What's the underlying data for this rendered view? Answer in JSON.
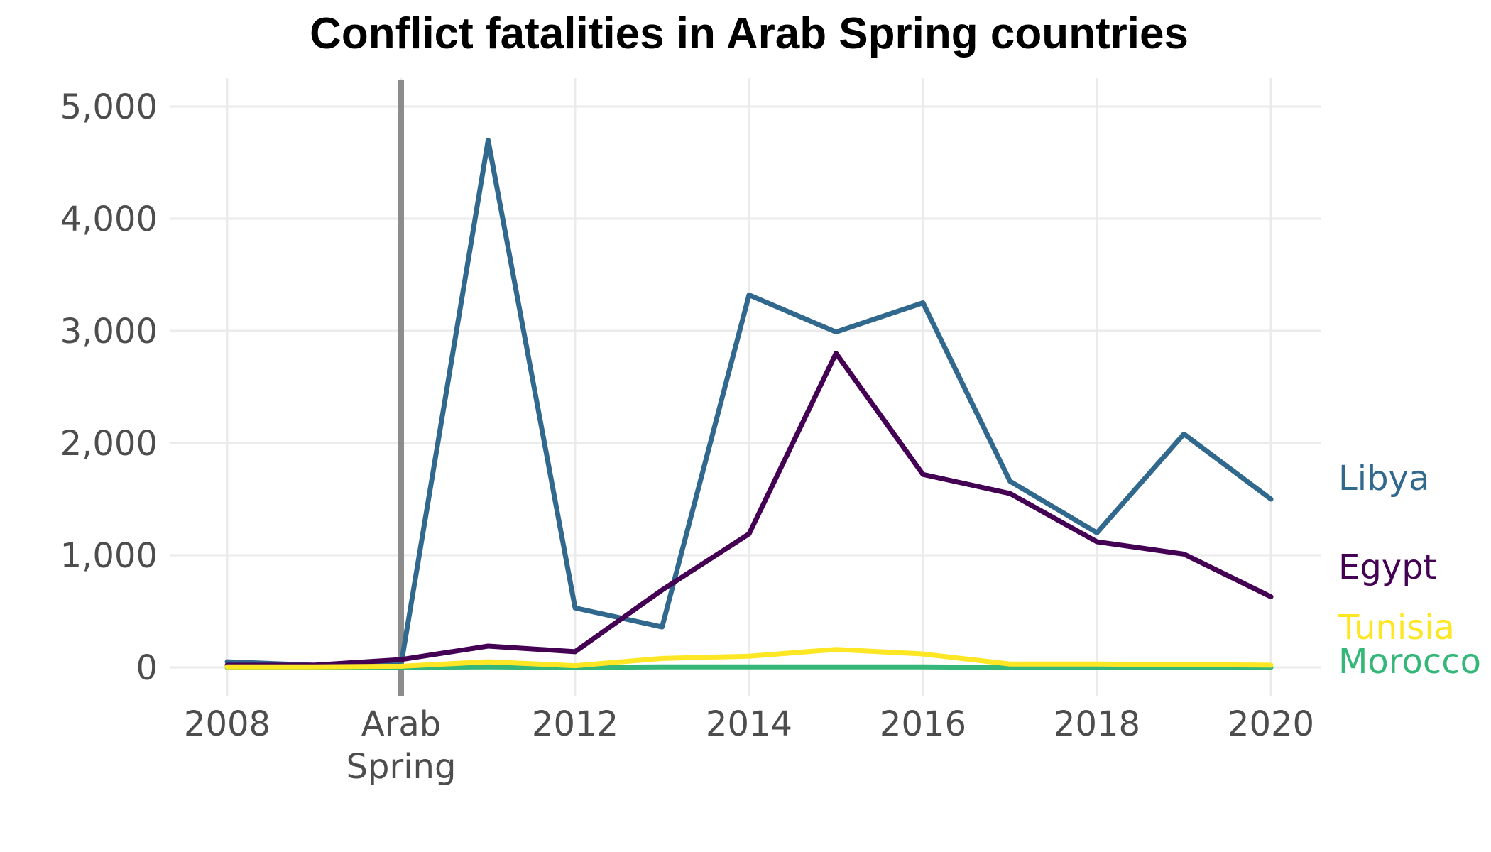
{
  "chart_data": {
    "type": "line",
    "title": "Conflict fatalities in Arab Spring countries",
    "xlabel": "",
    "ylabel": "",
    "xlim": [
      2008,
      2020
    ],
    "ylim": [
      0,
      5000
    ],
    "x_tick_labels": [
      {
        "value": 2008,
        "label": "2008"
      },
      {
        "value": 2012,
        "label": "2012"
      },
      {
        "value": 2014,
        "label": "2014"
      },
      {
        "value": 2016,
        "label": "2016"
      },
      {
        "value": 2018,
        "label": "2018"
      },
      {
        "value": 2020,
        "label": "2020"
      }
    ],
    "y_tick_labels": [
      {
        "value": 0,
        "label": "0"
      },
      {
        "value": 1000,
        "label": "1,000"
      },
      {
        "value": 2000,
        "label": "2,000"
      },
      {
        "value": 3000,
        "label": "3,000"
      },
      {
        "value": 4000,
        "label": "4,000"
      },
      {
        "value": 5000,
        "label": "5,000"
      }
    ],
    "x_grid_values": [
      2008,
      2010,
      2012,
      2014,
      2016,
      2018,
      2020
    ],
    "y_grid_values": [
      0,
      1000,
      2000,
      3000,
      4000,
      5000
    ],
    "grid": true,
    "legend": "direct labels at right end of lines",
    "annotation": {
      "x": 2010,
      "label_lines": [
        "Arab",
        "Spring"
      ],
      "color": "#8c8c8c"
    },
    "x": [
      2008,
      2009,
      2010,
      2011,
      2012,
      2013,
      2014,
      2015,
      2016,
      2017,
      2018,
      2019,
      2020
    ],
    "series": [
      {
        "name": "Libya",
        "color": "#31688e",
        "values": [
          50,
          20,
          30,
          4700,
          530,
          360,
          3320,
          2990,
          3250,
          1660,
          1200,
          2080,
          1500
        ]
      },
      {
        "name": "Egypt",
        "color": "#440154",
        "values": [
          20,
          20,
          70,
          190,
          140,
          690,
          1190,
          2800,
          1720,
          1550,
          1120,
          1010,
          630
        ]
      },
      {
        "name": "Tunisia",
        "color": "#fde725",
        "values": [
          5,
          5,
          10,
          50,
          15,
          80,
          100,
          160,
          120,
          30,
          30,
          25,
          20
        ]
      },
      {
        "name": "Morocco",
        "color": "#35b779",
        "values": [
          0,
          0,
          0,
          5,
          0,
          5,
          5,
          5,
          5,
          0,
          0,
          0,
          0
        ]
      }
    ]
  }
}
